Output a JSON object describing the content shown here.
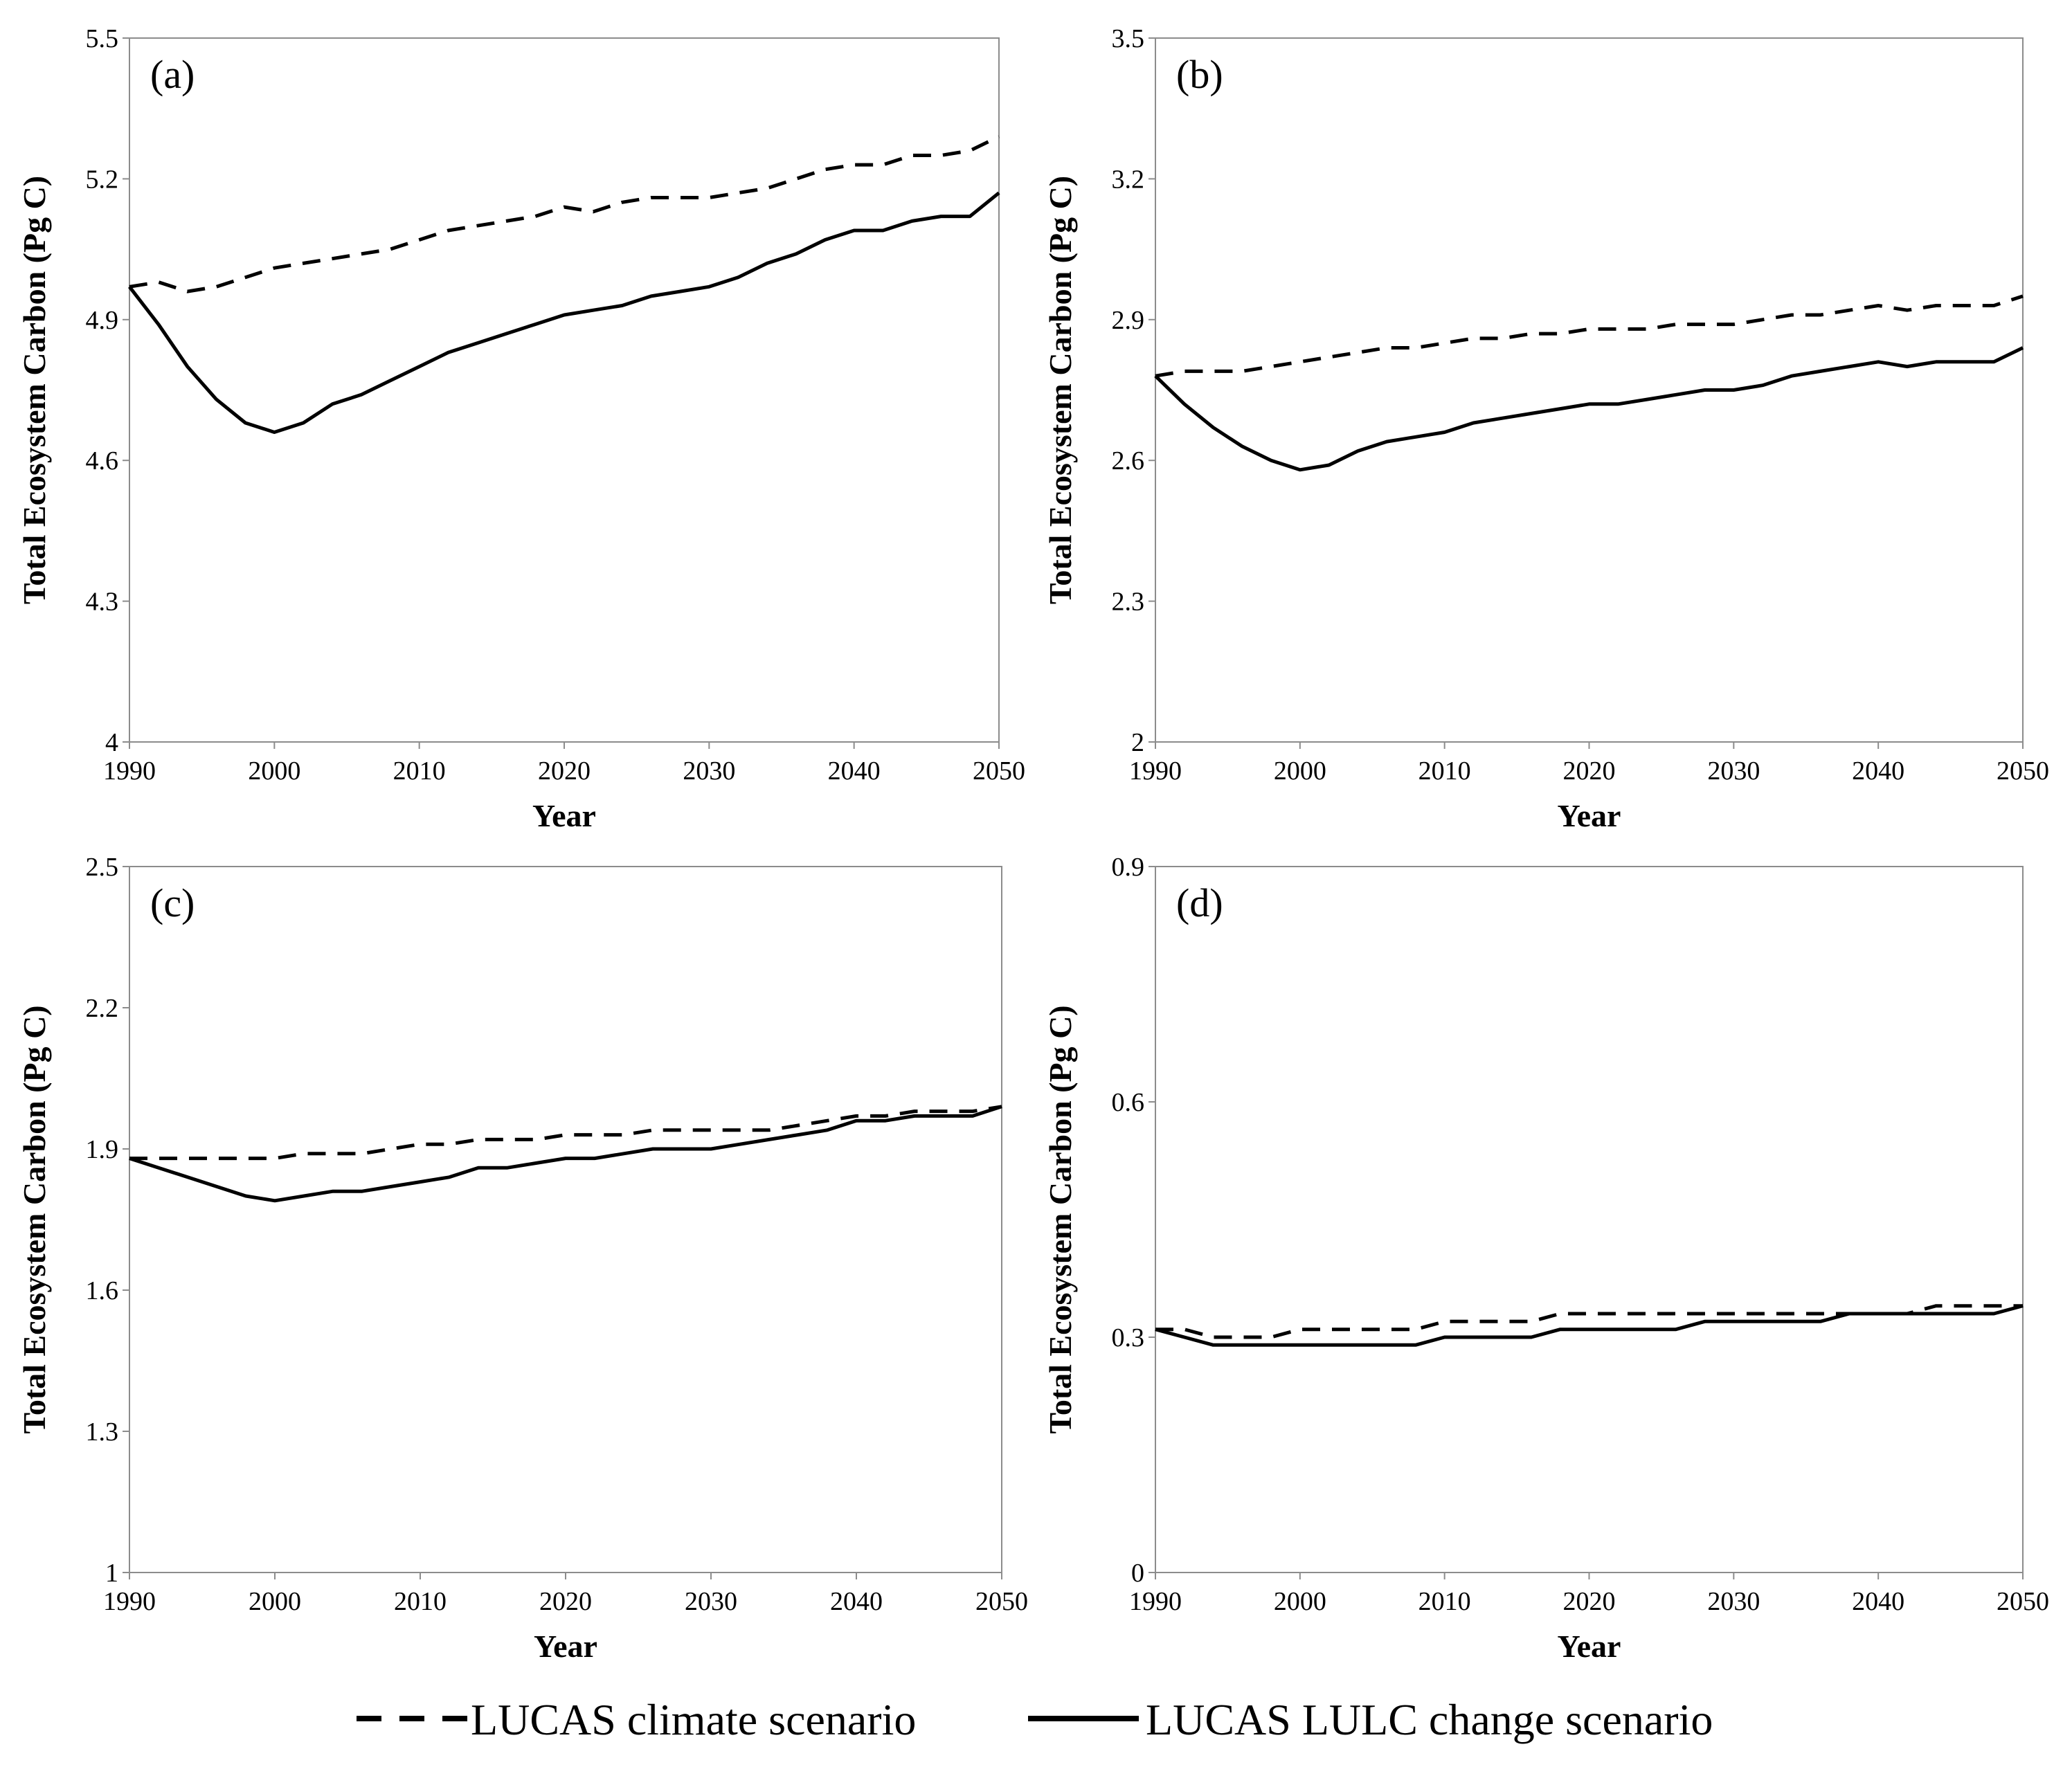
{
  "legend": {
    "climate_label": "LUCAS climate scenario",
    "lulc_label": "LUCAS LULC change scenario"
  },
  "colors": {
    "line": "#000000",
    "frame": "#8c8c8c",
    "background": "#ffffff"
  },
  "chart_data": [
    {
      "type": "line",
      "panel_label": "(a)",
      "xlabel": "Year",
      "ylabel": "Total Ecosystem Carbon (Pg C)",
      "xlim": [
        1990,
        2050
      ],
      "ylim": [
        4,
        5.5
      ],
      "xticks": [
        1990,
        2000,
        2010,
        2020,
        2030,
        2040,
        2050
      ],
      "yticks": [
        4,
        4.3,
        4.6,
        4.9,
        5.2,
        5.5
      ],
      "ytick_labels": [
        "4",
        "4.3",
        "4.6",
        "4.9",
        "5.2",
        "5.5"
      ],
      "series": [
        {
          "name": "LUCAS climate scenario",
          "style": "dashed",
          "x": [
            1990,
            1992,
            1994,
            1996,
            1998,
            2000,
            2002,
            2004,
            2006,
            2008,
            2010,
            2012,
            2014,
            2016,
            2018,
            2020,
            2022,
            2024,
            2026,
            2028,
            2030,
            2032,
            2034,
            2036,
            2038,
            2040,
            2042,
            2044,
            2046,
            2048,
            2050
          ],
          "y": [
            4.97,
            4.98,
            4.96,
            4.97,
            4.99,
            5.01,
            5.02,
            5.03,
            5.04,
            5.05,
            5.07,
            5.09,
            5.1,
            5.11,
            5.12,
            5.14,
            5.13,
            5.15,
            5.16,
            5.16,
            5.16,
            5.17,
            5.18,
            5.2,
            5.22,
            5.23,
            5.23,
            5.25,
            5.25,
            5.26,
            5.29
          ]
        },
        {
          "name": "LUCAS LULC change scenario",
          "style": "solid",
          "x": [
            1990,
            1992,
            1994,
            1996,
            1998,
            2000,
            2002,
            2004,
            2006,
            2008,
            2010,
            2012,
            2014,
            2016,
            2018,
            2020,
            2022,
            2024,
            2026,
            2028,
            2030,
            2032,
            2034,
            2036,
            2038,
            2040,
            2042,
            2044,
            2046,
            2048,
            2050
          ],
          "y": [
            4.97,
            4.89,
            4.8,
            4.73,
            4.68,
            4.66,
            4.68,
            4.72,
            4.74,
            4.77,
            4.8,
            4.83,
            4.85,
            4.87,
            4.89,
            4.91,
            4.92,
            4.93,
            4.95,
            4.96,
            4.97,
            4.99,
            5.02,
            5.04,
            5.07,
            5.09,
            5.09,
            5.11,
            5.12,
            5.12,
            5.17
          ]
        }
      ]
    },
    {
      "type": "line",
      "panel_label": "(b)",
      "xlabel": "Year",
      "ylabel": "Total Ecosystem Carbon (Pg C)",
      "xlim": [
        1990,
        2050
      ],
      "ylim": [
        2,
        3.5
      ],
      "xticks": [
        1990,
        2000,
        2010,
        2020,
        2030,
        2040,
        2050
      ],
      "yticks": [
        2,
        2.3,
        2.6,
        2.9,
        3.2,
        3.5
      ],
      "ytick_labels": [
        "2",
        "2.3",
        "2.6",
        "2.9",
        "3.2",
        "3.5"
      ],
      "series": [
        {
          "name": "LUCAS climate scenario",
          "style": "dashed",
          "x": [
            1990,
            1992,
            1994,
            1996,
            1998,
            2000,
            2002,
            2004,
            2006,
            2008,
            2010,
            2012,
            2014,
            2016,
            2018,
            2020,
            2022,
            2024,
            2026,
            2028,
            2030,
            2032,
            2034,
            2036,
            2038,
            2040,
            2042,
            2044,
            2046,
            2048,
            2050
          ],
          "y": [
            2.78,
            2.79,
            2.79,
            2.79,
            2.8,
            2.81,
            2.82,
            2.83,
            2.84,
            2.84,
            2.85,
            2.86,
            2.86,
            2.87,
            2.87,
            2.88,
            2.88,
            2.88,
            2.89,
            2.89,
            2.89,
            2.9,
            2.91,
            2.91,
            2.92,
            2.93,
            2.92,
            2.93,
            2.93,
            2.93,
            2.95
          ]
        },
        {
          "name": "LUCAS LULC change scenario",
          "style": "solid",
          "x": [
            1990,
            1992,
            1994,
            1996,
            1998,
            2000,
            2002,
            2004,
            2006,
            2008,
            2010,
            2012,
            2014,
            2016,
            2018,
            2020,
            2022,
            2024,
            2026,
            2028,
            2030,
            2032,
            2034,
            2036,
            2038,
            2040,
            2042,
            2044,
            2046,
            2048,
            2050
          ],
          "y": [
            2.78,
            2.72,
            2.67,
            2.63,
            2.6,
            2.58,
            2.59,
            2.62,
            2.64,
            2.65,
            2.66,
            2.68,
            2.69,
            2.7,
            2.71,
            2.72,
            2.72,
            2.73,
            2.74,
            2.75,
            2.75,
            2.76,
            2.78,
            2.79,
            2.8,
            2.81,
            2.8,
            2.81,
            2.81,
            2.81,
            2.84
          ]
        }
      ]
    },
    {
      "type": "line",
      "panel_label": "(c)",
      "xlabel": "Year",
      "ylabel": "Total Ecosystem Carbon (Pg C)",
      "xlim": [
        1990,
        2050
      ],
      "ylim": [
        1,
        2.5
      ],
      "xticks": [
        1990,
        2000,
        2010,
        2020,
        2030,
        2040,
        2050
      ],
      "yticks": [
        1,
        1.3,
        1.6,
        1.9,
        2.2,
        2.5
      ],
      "ytick_labels": [
        "1",
        "1.3",
        "1.6",
        "1.9",
        "2.2",
        "2.5"
      ],
      "series": [
        {
          "name": "LUCAS climate scenario",
          "style": "dashed",
          "x": [
            1990,
            1992,
            1994,
            1996,
            1998,
            2000,
            2002,
            2004,
            2006,
            2008,
            2010,
            2012,
            2014,
            2016,
            2018,
            2020,
            2022,
            2024,
            2026,
            2028,
            2030,
            2032,
            2034,
            2036,
            2038,
            2040,
            2042,
            2044,
            2046,
            2048,
            2050
          ],
          "y": [
            1.88,
            1.88,
            1.88,
            1.88,
            1.88,
            1.88,
            1.89,
            1.89,
            1.89,
            1.9,
            1.91,
            1.91,
            1.92,
            1.92,
            1.92,
            1.93,
            1.93,
            1.93,
            1.94,
            1.94,
            1.94,
            1.94,
            1.94,
            1.95,
            1.96,
            1.97,
            1.97,
            1.98,
            1.98,
            1.98,
            1.99
          ]
        },
        {
          "name": "LUCAS LULC change scenario",
          "style": "solid",
          "x": [
            1990,
            1992,
            1994,
            1996,
            1998,
            2000,
            2002,
            2004,
            2006,
            2008,
            2010,
            2012,
            2014,
            2016,
            2018,
            2020,
            2022,
            2024,
            2026,
            2028,
            2030,
            2032,
            2034,
            2036,
            2038,
            2040,
            2042,
            2044,
            2046,
            2048,
            2050
          ],
          "y": [
            1.88,
            1.86,
            1.84,
            1.82,
            1.8,
            1.79,
            1.8,
            1.81,
            1.81,
            1.82,
            1.83,
            1.84,
            1.86,
            1.86,
            1.87,
            1.88,
            1.88,
            1.89,
            1.9,
            1.9,
            1.9,
            1.91,
            1.92,
            1.93,
            1.94,
            1.96,
            1.96,
            1.97,
            1.97,
            1.97,
            1.99
          ]
        }
      ]
    },
    {
      "type": "line",
      "panel_label": "(d)",
      "xlabel": "Year",
      "ylabel": "Total Ecosystem Carbon (Pg C)",
      "xlim": [
        1990,
        2050
      ],
      "ylim": [
        0,
        0.9
      ],
      "xticks": [
        1990,
        2000,
        2010,
        2020,
        2030,
        2040,
        2050
      ],
      "yticks": [
        0,
        0.3,
        0.6,
        0.9
      ],
      "ytick_labels": [
        "0",
        "0.3",
        "0.6",
        "0.9"
      ],
      "series": [
        {
          "name": "LUCAS climate scenario",
          "style": "dashed",
          "x": [
            1990,
            1992,
            1994,
            1996,
            1998,
            2000,
            2002,
            2004,
            2006,
            2008,
            2010,
            2012,
            2014,
            2016,
            2018,
            2020,
            2022,
            2024,
            2026,
            2028,
            2030,
            2032,
            2034,
            2036,
            2038,
            2040,
            2042,
            2044,
            2046,
            2048,
            2050
          ],
          "y": [
            0.31,
            0.31,
            0.3,
            0.3,
            0.3,
            0.31,
            0.31,
            0.31,
            0.31,
            0.31,
            0.32,
            0.32,
            0.32,
            0.32,
            0.33,
            0.33,
            0.33,
            0.33,
            0.33,
            0.33,
            0.33,
            0.33,
            0.33,
            0.33,
            0.33,
            0.33,
            0.33,
            0.34,
            0.34,
            0.34,
            0.34
          ]
        },
        {
          "name": "LUCAS LULC change scenario",
          "style": "solid",
          "x": [
            1990,
            1992,
            1994,
            1996,
            1998,
            2000,
            2002,
            2004,
            2006,
            2008,
            2010,
            2012,
            2014,
            2016,
            2018,
            2020,
            2022,
            2024,
            2026,
            2028,
            2030,
            2032,
            2034,
            2036,
            2038,
            2040,
            2042,
            2044,
            2046,
            2048,
            2050
          ],
          "y": [
            0.31,
            0.3,
            0.29,
            0.29,
            0.29,
            0.29,
            0.29,
            0.29,
            0.29,
            0.29,
            0.3,
            0.3,
            0.3,
            0.3,
            0.31,
            0.31,
            0.31,
            0.31,
            0.31,
            0.32,
            0.32,
            0.32,
            0.32,
            0.32,
            0.33,
            0.33,
            0.33,
            0.33,
            0.33,
            0.33,
            0.34
          ]
        }
      ]
    }
  ]
}
